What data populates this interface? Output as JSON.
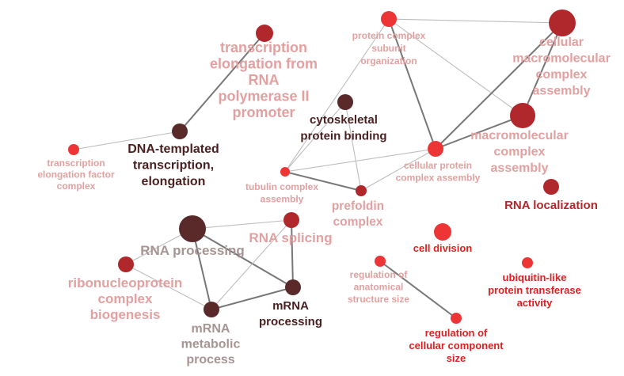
{
  "diagram": {
    "colors": {
      "background": "#ffffff",
      "edge_strong": "#777777",
      "edge_light": "#bdbdbd",
      "node_dark": "#5a2a2a",
      "node_darkred": "#b0282c",
      "node_red": "#ee3535",
      "label_pink": "#e3a0a0",
      "label_dark": "#4a1f1f",
      "label_red": "#e02020",
      "label_grey": "#a79494"
    },
    "nodes": [
      {
        "id": "transcription_elongation_rna_pol",
        "label": [
          "transcription",
          "elongation from",
          "RNA",
          "polymerase II",
          "promoter"
        ],
        "color": "#b0282c",
        "label_color": "#e3a0a0"
      },
      {
        "id": "dna_templated_transcription",
        "label": [
          "DNA-templated",
          "transcription,",
          "elongation"
        ],
        "color": "#5a2a2a",
        "label_color": "#4a1f1f"
      },
      {
        "id": "transcription_elongation_factor",
        "label": [
          "transcription",
          "elongation factor",
          "complex"
        ],
        "color": "#ee3535",
        "label_color": "#e3a0a0"
      },
      {
        "id": "cytoskeletal_protein_binding",
        "label": [
          "cytoskeletal",
          "protein binding"
        ],
        "color": "#5a2a2a",
        "label_color": "#4a1f1f"
      },
      {
        "id": "protein_complex_subunit_org",
        "label": [
          "protein complex",
          "subunit",
          "organization"
        ],
        "color": "#ee3535",
        "label_color": "#e3a0a0"
      },
      {
        "id": "cellular_macromolecular_complex_assembly",
        "label": [
          "cellular",
          "macromolecular",
          "complex",
          "assembly"
        ],
        "color": "#b0282c",
        "label_color": "#e3a0a0"
      },
      {
        "id": "macromolecular_complex_assembly",
        "label": [
          "macromolecular",
          "complex",
          "assembly"
        ],
        "color": "#b0282c",
        "label_color": "#e3a0a0"
      },
      {
        "id": "cellular_protein_complex_assembly",
        "label": [
          "cellular protein",
          "complex assembly"
        ],
        "color": "#ee3535",
        "label_color": "#e3a0a0"
      },
      {
        "id": "tubulin_complex_assembly",
        "label": [
          "tubulin complex",
          "assembly"
        ],
        "color": "#ee3535",
        "label_color": "#e3a0a0"
      },
      {
        "id": "prefoldin_complex",
        "label": [
          "prefoldin",
          "complex"
        ],
        "color": "#b0282c",
        "label_color": "#e3a0a0"
      },
      {
        "id": "rna_localization",
        "label": [
          "RNA localization"
        ],
        "color": "#b0282c",
        "label_color": "#b0282c"
      },
      {
        "id": "rna_processing",
        "label": [
          "RNA processing"
        ],
        "color": "#5a2a2a",
        "label_color": "#a79494"
      },
      {
        "id": "rna_splicing",
        "label": [
          "RNA splicing"
        ],
        "color": "#b0282c",
        "label_color": "#e3a0a0"
      },
      {
        "id": "ribonucleoprotein_complex_biogenesis",
        "label": [
          "ribonucleoprotein",
          "complex",
          "biogenesis"
        ],
        "color": "#b0282c",
        "label_color": "#e3a0a0"
      },
      {
        "id": "mrna_processing",
        "label": [
          "mRNA",
          "processing"
        ],
        "color": "#5a2a2a",
        "label_color": "#4a1f1f"
      },
      {
        "id": "mrna_metabolic_process",
        "label": [
          "mRNA",
          "metabolic",
          "process"
        ],
        "color": "#5a2a2a",
        "label_color": "#a79494"
      },
      {
        "id": "cell_division",
        "label": [
          "cell division"
        ],
        "color": "#ee3535",
        "label_color": "#e02020"
      },
      {
        "id": "regulation_anatomical_structure_size",
        "label": [
          "regulation of",
          "anatomical",
          "structure size"
        ],
        "color": "#ee3535",
        "label_color": "#e3a0a0"
      },
      {
        "id": "regulation_cellular_component_size",
        "label": [
          "regulation of",
          "cellular component",
          "size"
        ],
        "color": "#ee3535",
        "label_color": "#e02020"
      },
      {
        "id": "ubiquitin_like_protein_transferase",
        "label": [
          "ubiquitin-like",
          "protein transferase",
          "activity"
        ],
        "color": "#ee3535",
        "label_color": "#e02020"
      }
    ],
    "edges": [
      {
        "from": "transcription_elongation_rna_pol",
        "to": "dna_templated_transcription",
        "strength": "strong"
      },
      {
        "from": "dna_templated_transcription",
        "to": "transcription_elongation_factor",
        "strength": "light"
      },
      {
        "from": "protein_complex_subunit_org",
        "to": "cellular_macromolecular_complex_assembly",
        "strength": "light"
      },
      {
        "from": "protein_complex_subunit_org",
        "to": "macromolecular_complex_assembly",
        "strength": "light"
      },
      {
        "from": "protein_complex_subunit_org",
        "to": "cellular_protein_complex_assembly",
        "strength": "strong"
      },
      {
        "from": "protein_complex_subunit_org",
        "to": "tubulin_complex_assembly",
        "strength": "light"
      },
      {
        "from": "cellular_macromolecular_complex_assembly",
        "to": "macromolecular_complex_assembly",
        "strength": "strong"
      },
      {
        "from": "cellular_macromolecular_complex_assembly",
        "to": "cellular_protein_complex_assembly",
        "strength": "strong"
      },
      {
        "from": "macromolecular_complex_assembly",
        "to": "cellular_protein_complex_assembly",
        "strength": "strong"
      },
      {
        "from": "cytoskeletal_protein_binding",
        "to": "tubulin_complex_assembly",
        "strength": "light"
      },
      {
        "from": "cytoskeletal_protein_binding",
        "to": "prefoldin_complex",
        "strength": "light"
      },
      {
        "from": "tubulin_complex_assembly",
        "to": "cellular_protein_complex_assembly",
        "strength": "light"
      },
      {
        "from": "tubulin_complex_assembly",
        "to": "prefoldin_complex",
        "strength": "strong"
      },
      {
        "from": "prefoldin_complex",
        "to": "cellular_protein_complex_assembly",
        "strength": "light"
      },
      {
        "from": "rna_processing",
        "to": "ribonucleoprotein_complex_biogenesis",
        "strength": "light"
      },
      {
        "from": "rna_processing",
        "to": "rna_splicing",
        "strength": "light"
      },
      {
        "from": "rna_processing",
        "to": "mrna_processing",
        "strength": "strong"
      },
      {
        "from": "rna_processing",
        "to": "mrna_metabolic_process",
        "strength": "strong"
      },
      {
        "from": "rna_splicing",
        "to": "mrna_processing",
        "strength": "strong"
      },
      {
        "from": "rna_splicing",
        "to": "mrna_metabolic_process",
        "strength": "light"
      },
      {
        "from": "ribonucleoprotein_complex_biogenesis",
        "to": "mrna_metabolic_process",
        "strength": "light"
      },
      {
        "from": "mrna_processing",
        "to": "mrna_metabolic_process",
        "strength": "strong"
      },
      {
        "from": "regulation_anatomical_structure_size",
        "to": "regulation_cellular_component_size",
        "strength": "strong"
      }
    ]
  }
}
